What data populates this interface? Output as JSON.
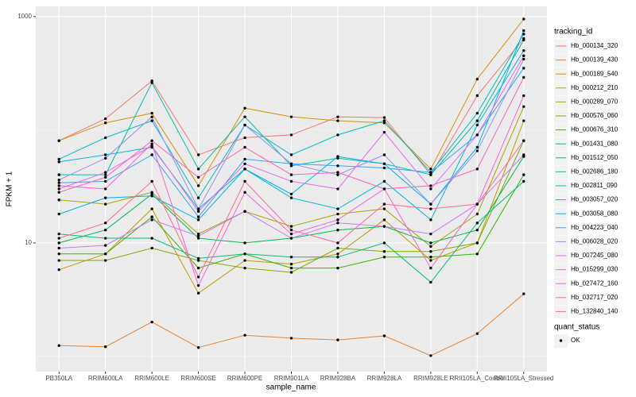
{
  "chart_data": {
    "type": "line",
    "x_label": "sample_name",
    "y_label": "FPKM + 1",
    "log_y": true,
    "grid": true,
    "ylim": [
      0.73,
      1230
    ],
    "yticks": [
      10,
      1000
    ],
    "minor_yticks": [
      1,
      100
    ],
    "categories": [
      "PB350LA",
      "RRIM600LA",
      "RRIM600LE",
      "RRIM600SE",
      "RRIM600PE",
      "RRIM901LA",
      "RRIM928BA",
      "RRIM928LA",
      "RRIM928LE",
      "RRII105LA_Control",
      "RRII105LA_Stressed"
    ],
    "legend_title": "tracking_id",
    "legend_position": "right",
    "point_legend": {
      "title": "quant_status",
      "labels": [
        "OK"
      ],
      "color": "#000000"
    },
    "series": [
      {
        "name": "Hb_000134_320",
        "color": "#F8766D",
        "values": [
          80,
          125,
          270,
          60,
          85,
          90,
          130,
          128,
          40,
          200,
          640
        ]
      },
      {
        "name": "Hb_000139_430",
        "color": "#EA8331",
        "values": [
          1.24,
          1.21,
          2.0,
          1.19,
          1.53,
          1.44,
          1.39,
          1.51,
          1.01,
          1.58,
          3.55
        ]
      },
      {
        "name": "Hb_000189_540",
        "color": "#D89000",
        "values": [
          80,
          115,
          140,
          32,
          155,
          130,
          120,
          115,
          45,
          280,
          950
        ]
      },
      {
        "name": "Hb_000212_210",
        "color": "#C09B00",
        "values": [
          5.8,
          8,
          20,
          3.6,
          7.0,
          6.5,
          8,
          16,
          7,
          10,
          120
        ]
      },
      {
        "name": "Hb_000289_070",
        "color": "#A3A500",
        "values": [
          24,
          22,
          28,
          12,
          19,
          14,
          18,
          20,
          9.3,
          18,
          160
        ]
      },
      {
        "name": "Hb_000576_060",
        "color": "#7CAE00",
        "values": [
          7,
          7,
          9,
          7,
          6,
          5.5,
          9,
          8.4,
          8.4,
          10,
          80
        ]
      },
      {
        "name": "Hb_000676_310",
        "color": "#39B600",
        "values": [
          8,
          8,
          17,
          6,
          8,
          6,
          6,
          7.5,
          7.5,
          8,
          40
        ]
      },
      {
        "name": "Hb_001431_080",
        "color": "#00BB4E",
        "values": [
          10,
          13,
          27,
          11,
          10,
          11,
          13,
          14,
          10,
          13,
          58
        ]
      },
      {
        "name": "Hb_001512_050",
        "color": "#00BF7D",
        "values": [
          12,
          11,
          11,
          7.3,
          8,
          7.5,
          7.5,
          10,
          4.5,
          15,
          35
        ]
      },
      {
        "name": "Hb_002686_180",
        "color": "#00C1A3",
        "values": [
          40,
          40,
          260,
          45,
          130,
          48,
          56,
          50,
          40,
          120,
          620
        ]
      },
      {
        "name": "Hb_002811_090",
        "color": "#00BFC4",
        "values": [
          55,
          85,
          120,
          25,
          110,
          60,
          90,
          120,
          42,
          140,
          700
        ]
      },
      {
        "name": "Hb_003057_020",
        "color": "#00BAE0",
        "values": [
          52,
          60,
          70,
          20,
          45,
          25,
          20,
          35,
          16,
          110,
          500
        ]
      },
      {
        "name": "Hb_003058_080",
        "color": "#00B0F6",
        "values": [
          18,
          25,
          26,
          16,
          45,
          27,
          58,
          50,
          22,
          70,
          750
        ]
      },
      {
        "name": "Hb_004223_040",
        "color": "#35A2FF",
        "values": [
          34,
          35,
          60,
          17,
          55,
          50,
          48,
          46,
          42,
          90,
          350
        ]
      },
      {
        "name": "Hb_006028_020",
        "color": "#9590FF",
        "values": [
          36,
          56,
          130,
          20,
          110,
          50,
          40,
          60,
          22,
          65,
          420
        ]
      },
      {
        "name": "Hb_007245_080",
        "color": "#C77CFF",
        "values": [
          9,
          9.5,
          16,
          11.5,
          19,
          11,
          15,
          14,
          12,
          22,
          60
        ]
      },
      {
        "name": "Hb_015299_030",
        "color": "#E76BF3",
        "values": [
          30,
          42,
          72,
          19,
          50,
          35,
          30,
          95,
          30,
          90,
          450
        ]
      },
      {
        "name": "Hb_027472_160",
        "color": "#FA62DB",
        "values": [
          32,
          30,
          75,
          4.2,
          28,
          12,
          16,
          30,
          6,
          22,
          200
        ]
      },
      {
        "name": "Hb_032717_020",
        "color": "#FF62BC",
        "values": [
          28,
          38,
          80,
          38,
          70,
          40,
          42,
          30,
          32,
          45,
          290
        ]
      },
      {
        "name": "Hb_132840_140",
        "color": "#FF6C91",
        "values": [
          11,
          15,
          35,
          5,
          35,
          13,
          10,
          22,
          20,
          22,
          80
        ]
      }
    ]
  }
}
